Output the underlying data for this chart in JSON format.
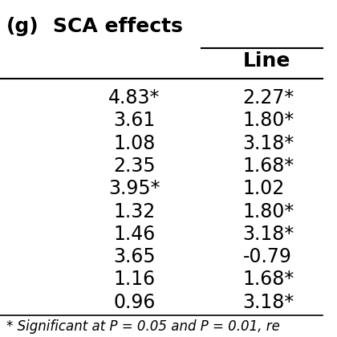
{
  "title_label": "(g)",
  "header_main": "SCA effects",
  "col2_header": "Line",
  "sca_values": [
    "4.83*",
    "3.61",
    "1.08",
    "2.35",
    "3.95*",
    "1.32",
    "1.46",
    "3.65",
    "1.16",
    "0.96"
  ],
  "line_values": [
    "2.27*",
    "1.80*",
    "3.18*",
    "1.68*",
    "1.02",
    "1.80*",
    "3.18*",
    "-0.79",
    "1.68*",
    "3.18*"
  ],
  "footnote": "* Significant at P = 0.05 and P = 0.01, re",
  "background_color": "#ffffff",
  "text_color": "#000000",
  "fontsize_title": 18,
  "fontsize_header": 18,
  "fontsize_data": 17,
  "fontsize_footnote": 12
}
